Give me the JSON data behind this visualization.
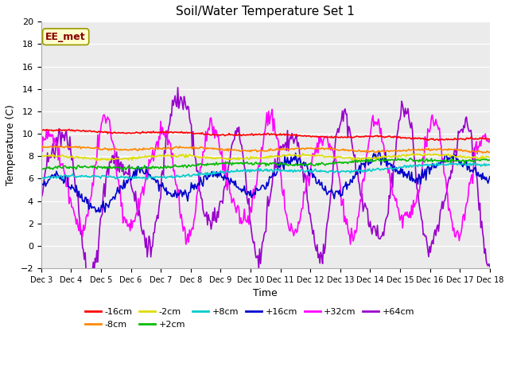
{
  "title": "Soil/Water Temperature Set 1",
  "xlabel": "Time",
  "ylabel": "Temperature (C)",
  "xlim": [
    0,
    15
  ],
  "ylim": [
    -2,
    20
  ],
  "yticks": [
    -2,
    0,
    2,
    4,
    6,
    8,
    10,
    12,
    14,
    16,
    18,
    20
  ],
  "xtick_labels": [
    "Dec 3",
    "Dec 4",
    "Dec 5",
    "Dec 6",
    "Dec 7",
    "Dec 8",
    "Dec 9",
    "Dec 10",
    "Dec 11",
    "Dec 12",
    "Dec 13",
    "Dec 14",
    "Dec 15",
    "Dec 16",
    "Dec 17",
    "Dec 18"
  ],
  "fig_facecolor": "#ffffff",
  "plot_bg_color": "#ebebeb",
  "grid_color": "#ffffff",
  "annotation_text": "EE_met",
  "annotation_box_facecolor": "#ffffcc",
  "annotation_box_edgecolor": "#999900",
  "annotation_text_color": "#880000",
  "series_order": [
    "-16cm",
    "-8cm",
    "-2cm",
    "+2cm",
    "+8cm",
    "+16cm",
    "+32cm",
    "+64cm"
  ],
  "series": {
    "-16cm": {
      "color": "#ff0000",
      "linewidth": 1.2
    },
    "-8cm": {
      "color": "#ff8800",
      "linewidth": 1.2
    },
    "-2cm": {
      "color": "#dddd00",
      "linewidth": 1.2
    },
    "+2cm": {
      "color": "#00bb00",
      "linewidth": 1.2
    },
    "+8cm": {
      "color": "#00cccc",
      "linewidth": 1.2
    },
    "+16cm": {
      "color": "#0000cc",
      "linewidth": 1.2
    },
    "+32cm": {
      "color": "#ff00ff",
      "linewidth": 1.2
    },
    "+64cm": {
      "color": "#9900cc",
      "linewidth": 1.2
    }
  },
  "legend_row1": [
    "-16cm",
    "-8cm",
    "-2cm",
    "+2cm",
    "+8cm",
    "+16cm"
  ],
  "legend_row2": [
    "+32cm",
    "+64cm"
  ]
}
